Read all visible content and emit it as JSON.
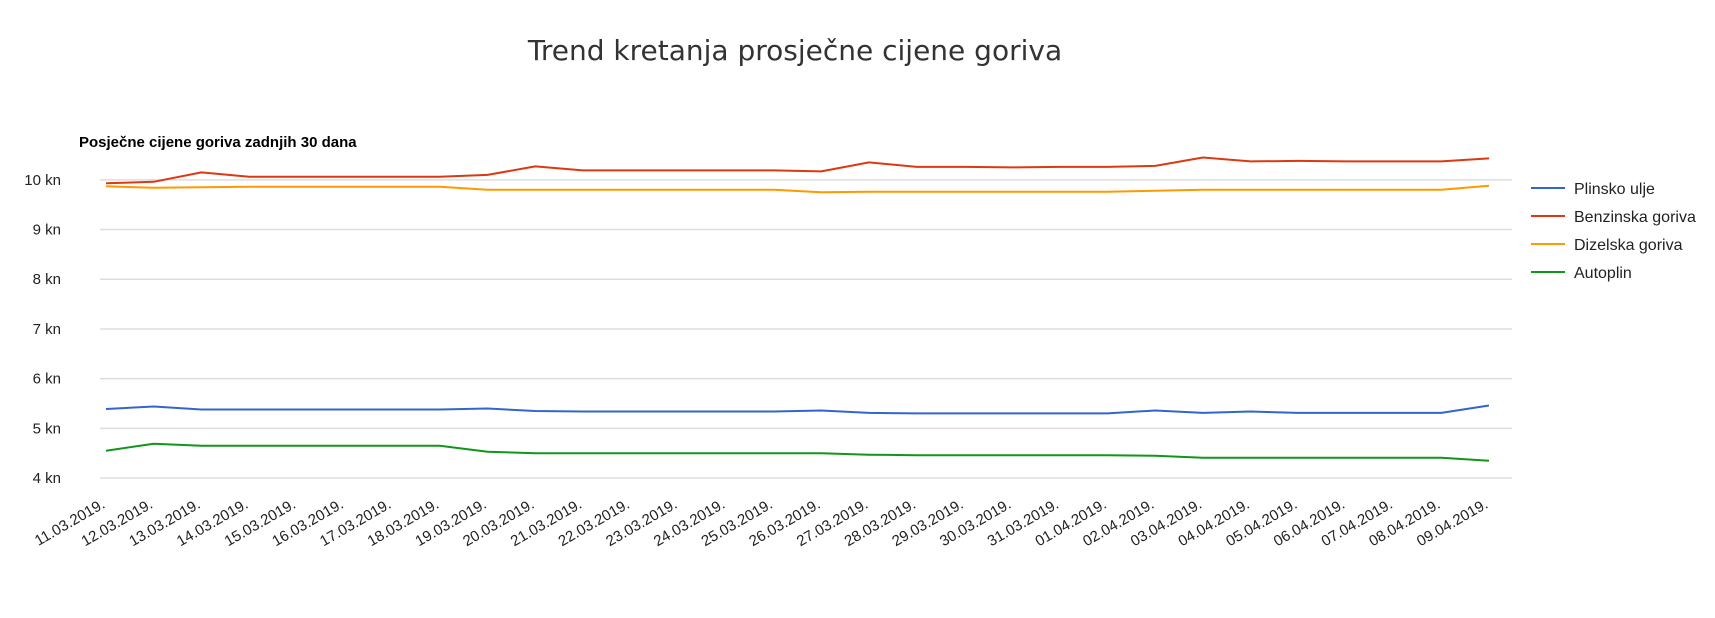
{
  "page_title": "Trend kretanja prosječne cijene goriva",
  "chart_data": {
    "type": "line",
    "title": "Trend kretanja prosječne cijene goriva",
    "subtitle": "Posječne cijene goriva zadnjih 30 dana",
    "xlabel": "",
    "ylabel": "",
    "ylim": [
      3.8,
      10.6
    ],
    "yticks": [
      4,
      5,
      6,
      7,
      8,
      9,
      10
    ],
    "ytick_suffix": " kn",
    "grid": true,
    "legend_position": "right",
    "categories": [
      "11.03.2019.",
      "12.03.2019.",
      "13.03.2019.",
      "14.03.2019.",
      "15.03.2019.",
      "16.03.2019.",
      "17.03.2019.",
      "18.03.2019.",
      "19.03.2019.",
      "20.03.2019.",
      "21.03.2019.",
      "22.03.2019.",
      "23.03.2019.",
      "24.03.2019.",
      "25.03.2019.",
      "26.03.2019.",
      "27.03.2019.",
      "28.03.2019.",
      "29.03.2019.",
      "30.03.2019.",
      "31.03.2019.",
      "01.04.2019.",
      "02.04.2019.",
      "03.04.2019.",
      "04.04.2019.",
      "05.04.2019.",
      "06.04.2019.",
      "07.04.2019.",
      "08.04.2019.",
      "09.04.2019."
    ],
    "series": [
      {
        "name": "Plinsko ulje",
        "color": "#3366cc",
        "values": [
          5.39,
          5.44,
          5.38,
          5.38,
          5.38,
          5.38,
          5.38,
          5.38,
          5.4,
          5.35,
          5.34,
          5.34,
          5.34,
          5.34,
          5.34,
          5.36,
          5.31,
          5.3,
          5.3,
          5.3,
          5.3,
          5.3,
          5.36,
          5.31,
          5.34,
          5.31,
          5.31,
          5.31,
          5.31,
          5.46
        ]
      },
      {
        "name": "Benzinska goriva",
        "color": "#dc3912",
        "values": [
          9.93,
          9.96,
          10.15,
          10.06,
          10.06,
          10.06,
          10.06,
          10.06,
          10.1,
          10.27,
          10.19,
          10.19,
          10.19,
          10.19,
          10.19,
          10.17,
          10.35,
          10.26,
          10.26,
          10.25,
          10.26,
          10.26,
          10.28,
          10.45,
          10.37,
          10.38,
          10.37,
          10.37,
          10.37,
          10.43
        ]
      },
      {
        "name": "Dizelska goriva",
        "color": "#ff9900",
        "values": [
          9.87,
          9.84,
          9.85,
          9.86,
          9.86,
          9.86,
          9.86,
          9.86,
          9.8,
          9.8,
          9.8,
          9.8,
          9.8,
          9.8,
          9.8,
          9.75,
          9.76,
          9.76,
          9.76,
          9.76,
          9.76,
          9.76,
          9.78,
          9.8,
          9.8,
          9.8,
          9.8,
          9.8,
          9.8,
          9.88
        ]
      },
      {
        "name": "Autoplin",
        "color": "#109618",
        "values": [
          4.55,
          4.69,
          4.65,
          4.65,
          4.65,
          4.65,
          4.65,
          4.65,
          4.53,
          4.5,
          4.5,
          4.5,
          4.5,
          4.5,
          4.5,
          4.5,
          4.47,
          4.46,
          4.46,
          4.46,
          4.46,
          4.46,
          4.45,
          4.41,
          4.41,
          4.41,
          4.41,
          4.41,
          4.41,
          4.35
        ]
      }
    ]
  }
}
